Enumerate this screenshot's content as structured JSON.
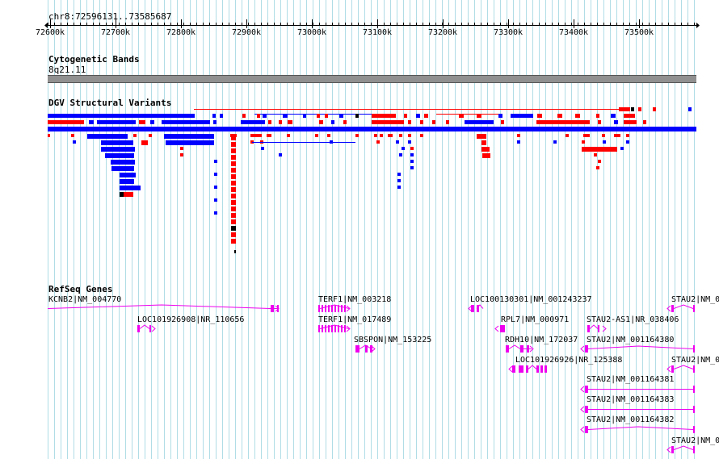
{
  "coords": "chr8:72596131..73585687",
  "ruler": {
    "ticks": [
      "72600k",
      "72700k",
      "72800k",
      "72900k",
      "73000k",
      "73100k",
      "73200k",
      "73300k",
      "73400k",
      "73500k"
    ]
  },
  "tracks": {
    "cytoband": {
      "title": "Cytogenetic Bands",
      "band": "8q21.11"
    },
    "dgv": {
      "title": "DGV Structural Variants"
    },
    "refseq": {
      "title": "RefSeq Genes",
      "genes": [
        "KCNB2|NM_004770",
        "LOC101926908|NR_110656",
        "TERF1|NM_003218",
        "TERF1|NM_017489",
        "SBSPON|NM_153225",
        "LOC100130301|NM_001243237",
        "RPL7|NM_000971",
        "RDH10|NM_172037",
        "LOC101926926|NR_125388",
        "STAU2-AS1|NR_038406",
        "STAU2|NM_001164380",
        "STAU2|NM_001164381",
        "STAU2|NM_001164383",
        "STAU2|NM_001164382",
        "STAU2|NM_0",
        "STAU2|NM_0",
        "STAU2|NM_0"
      ]
    }
  },
  "colors": {
    "gain": "#ff0000",
    "loss": "#0000ff",
    "gene": "#ee00ee",
    "grid": "#b0dde6",
    "band": "#909090"
  }
}
